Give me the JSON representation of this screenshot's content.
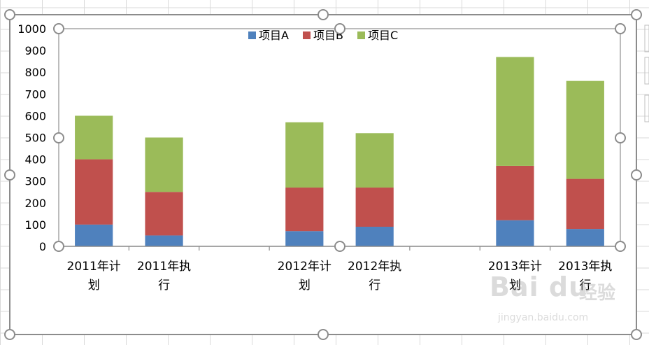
{
  "chart_data": {
    "type": "bar",
    "stacked": true,
    "categories": [
      [
        "2011年计",
        "划"
      ],
      [
        "2011年执",
        "行"
      ],
      [
        "",
        ""
      ],
      [
        "2012年计",
        "划"
      ],
      [
        "2012年执",
        "行"
      ],
      [
        "",
        ""
      ],
      [
        "2013年计",
        "划"
      ],
      [
        "2013年执",
        "行"
      ]
    ],
    "series": [
      {
        "name": "项目A",
        "color": "#4F81BD",
        "values": [
          100,
          50,
          null,
          70,
          90,
          null,
          120,
          80
        ]
      },
      {
        "name": "项目B",
        "color": "#C0504D",
        "values": [
          300,
          200,
          null,
          200,
          180,
          null,
          250,
          230
        ]
      },
      {
        "name": "项目C",
        "color": "#9BBB59",
        "values": [
          200,
          250,
          null,
          300,
          250,
          null,
          500,
          450
        ]
      }
    ],
    "ylim": [
      0,
      1000
    ],
    "yticks": [
      "0",
      "100",
      "200",
      "300",
      "400",
      "500",
      "600",
      "700",
      "800",
      "900",
      "1000"
    ],
    "grid": false,
    "legend_position": "top"
  },
  "watermark": {
    "main": "Bai du",
    "cn": "经验",
    "url": "jingyan.baidu.com"
  }
}
